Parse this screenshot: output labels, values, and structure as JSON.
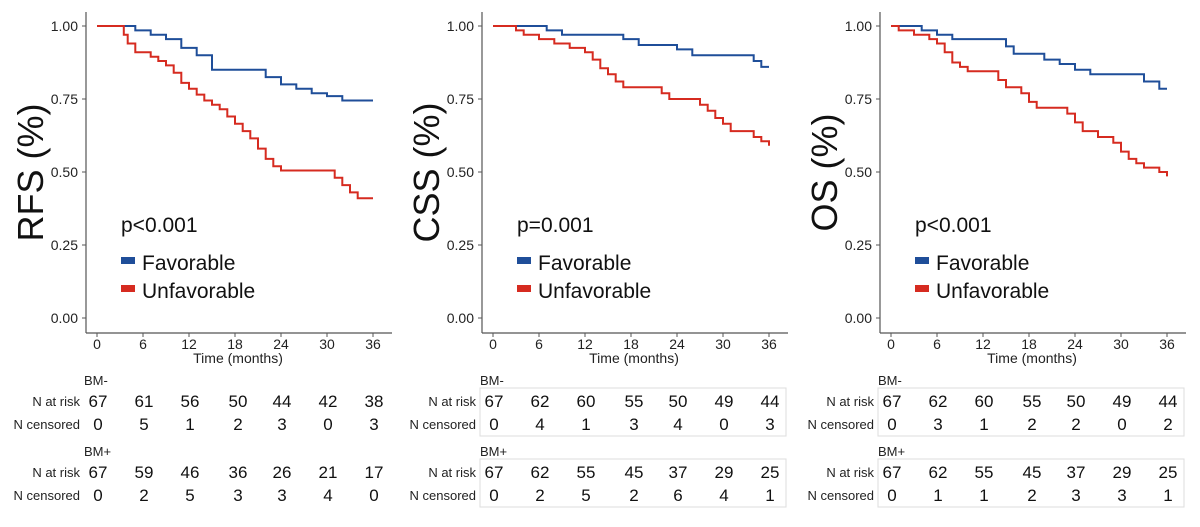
{
  "colors": {
    "favorable": "#1f4e99",
    "unfavorable": "#d62b20",
    "axis": "#555555",
    "table_border": "#dddddd"
  },
  "chart_data": [
    {
      "type": "line",
      "ylabel": "RFS (%)",
      "xlabel": "Time (months)",
      "pvalue": "p<0.001",
      "xlim": [
        0,
        36
      ],
      "ylim": [
        0,
        1
      ],
      "x_ticks": [
        "0",
        "6",
        "12",
        "18",
        "24",
        "30",
        "36"
      ],
      "y_ticks": [
        "0.00",
        "0.25",
        "0.50",
        "0.75",
        "1.00"
      ],
      "series": [
        {
          "name": "Favorable",
          "color_key": "favorable",
          "points": [
            [
              0,
              1
            ],
            [
              3,
              1
            ],
            [
              5,
              0.985
            ],
            [
              7,
              0.97
            ],
            [
              9,
              0.955
            ],
            [
              11,
              0.925
            ],
            [
              13,
              0.9
            ],
            [
              15,
              0.85
            ],
            [
              21,
              0.85
            ],
            [
              22,
              0.825
            ],
            [
              24,
              0.8
            ],
            [
              26,
              0.785
            ],
            [
              28,
              0.77
            ],
            [
              30,
              0.76
            ],
            [
              32,
              0.745
            ],
            [
              36,
              0.745
            ]
          ]
        },
        {
          "name": "Unfavorable",
          "color_key": "unfavorable",
          "points": [
            [
              0,
              1
            ],
            [
              3,
              1
            ],
            [
              3.5,
              0.97
            ],
            [
              4,
              0.94
            ],
            [
              5,
              0.91
            ],
            [
              7,
              0.895
            ],
            [
              8,
              0.88
            ],
            [
              9,
              0.865
            ],
            [
              10,
              0.84
            ],
            [
              11,
              0.805
            ],
            [
              12,
              0.785
            ],
            [
              13,
              0.765
            ],
            [
              14,
              0.745
            ],
            [
              15,
              0.73
            ],
            [
              16,
              0.715
            ],
            [
              17,
              0.69
            ],
            [
              18,
              0.665
            ],
            [
              19,
              0.64
            ],
            [
              20,
              0.615
            ],
            [
              21,
              0.58
            ],
            [
              22,
              0.545
            ],
            [
              23,
              0.52
            ],
            [
              24,
              0.505
            ],
            [
              30,
              0.505
            ],
            [
              31,
              0.48
            ],
            [
              32,
              0.455
            ],
            [
              33,
              0.43
            ],
            [
              34,
              0.41
            ],
            [
              36,
              0.41
            ]
          ]
        }
      ],
      "risk_table": {
        "times": [
          "0",
          "6",
          "12",
          "18",
          "24",
          "30",
          "36"
        ],
        "groups": [
          {
            "label": "BM-",
            "n_at_risk": [
              "67",
              "61",
              "56",
              "50",
              "44",
              "42",
              "38"
            ],
            "n_censored": [
              "0",
              "5",
              "1",
              "2",
              "3",
              "0",
              "3"
            ]
          },
          {
            "label": "BM+",
            "n_at_risk": [
              "67",
              "59",
              "46",
              "36",
              "26",
              "21",
              "17"
            ],
            "n_censored": [
              "0",
              "2",
              "5",
              "3",
              "3",
              "4",
              "0"
            ]
          }
        ]
      }
    },
    {
      "type": "line",
      "ylabel": "CSS (%)",
      "xlabel": "Time (months)",
      "pvalue": "p=0.001",
      "xlim": [
        0,
        36
      ],
      "ylim": [
        0,
        1
      ],
      "x_ticks": [
        "0",
        "6",
        "12",
        "18",
        "24",
        "30",
        "36"
      ],
      "y_ticks": [
        "0.00",
        "0.25",
        "0.50",
        "0.75",
        "1.00"
      ],
      "series": [
        {
          "name": "Favorable",
          "color_key": "favorable",
          "points": [
            [
              0,
              1
            ],
            [
              5,
              1
            ],
            [
              7,
              0.985
            ],
            [
              9,
              0.97
            ],
            [
              15,
              0.97
            ],
            [
              17,
              0.955
            ],
            [
              19,
              0.935
            ],
            [
              23,
              0.935
            ],
            [
              24,
              0.92
            ],
            [
              26,
              0.9
            ],
            [
              33,
              0.9
            ],
            [
              34,
              0.88
            ],
            [
              35,
              0.86
            ],
            [
              36,
              0.86
            ]
          ]
        },
        {
          "name": "Unfavorable",
          "color_key": "unfavorable",
          "points": [
            [
              0,
              1
            ],
            [
              2,
              1
            ],
            [
              3,
              0.985
            ],
            [
              4,
              0.97
            ],
            [
              6,
              0.955
            ],
            [
              8,
              0.94
            ],
            [
              10,
              0.925
            ],
            [
              12,
              0.91
            ],
            [
              13,
              0.885
            ],
            [
              14,
              0.855
            ],
            [
              15,
              0.835
            ],
            [
              16,
              0.81
            ],
            [
              17,
              0.79
            ],
            [
              21,
              0.79
            ],
            [
              22,
              0.77
            ],
            [
              23,
              0.75
            ],
            [
              26,
              0.75
            ],
            [
              27,
              0.73
            ],
            [
              28,
              0.71
            ],
            [
              29,
              0.685
            ],
            [
              30,
              0.665
            ],
            [
              31,
              0.64
            ],
            [
              33,
              0.64
            ],
            [
              34,
              0.62
            ],
            [
              35,
              0.605
            ],
            [
              36,
              0.59
            ]
          ]
        }
      ],
      "risk_table": {
        "times": [
          "0",
          "6",
          "12",
          "18",
          "24",
          "30",
          "36"
        ],
        "groups": [
          {
            "label": "BM-",
            "n_at_risk": [
              "67",
              "62",
              "60",
              "55",
              "50",
              "49",
              "44"
            ],
            "n_censored": [
              "0",
              "4",
              "1",
              "3",
              "4",
              "0",
              "3"
            ]
          },
          {
            "label": "BM+",
            "n_at_risk": [
              "67",
              "62",
              "55",
              "45",
              "37",
              "29",
              "25"
            ],
            "n_censored": [
              "0",
              "2",
              "5",
              "2",
              "6",
              "4",
              "1"
            ]
          }
        ]
      }
    },
    {
      "type": "line",
      "ylabel": "OS (%)",
      "xlabel": "Time (months)",
      "pvalue": "p<0.001",
      "xlim": [
        0,
        36
      ],
      "ylim": [
        0,
        1
      ],
      "x_ticks": [
        "0",
        "6",
        "12",
        "18",
        "24",
        "30",
        "36"
      ],
      "y_ticks": [
        "0.00",
        "0.25",
        "0.50",
        "0.75",
        "1.00"
      ],
      "series": [
        {
          "name": "Favorable",
          "color_key": "favorable",
          "points": [
            [
              0,
              1
            ],
            [
              2,
              1
            ],
            [
              4,
              0.985
            ],
            [
              6,
              0.97
            ],
            [
              8,
              0.955
            ],
            [
              14,
              0.955
            ],
            [
              15,
              0.93
            ],
            [
              16,
              0.905
            ],
            [
              19,
              0.905
            ],
            [
              20,
              0.885
            ],
            [
              22,
              0.87
            ],
            [
              24,
              0.85
            ],
            [
              26,
              0.835
            ],
            [
              32,
              0.835
            ],
            [
              33,
              0.81
            ],
            [
              35,
              0.785
            ],
            [
              36,
              0.785
            ]
          ]
        },
        {
          "name": "Unfavorable",
          "color_key": "unfavorable",
          "points": [
            [
              0,
              1
            ],
            [
              1,
              0.985
            ],
            [
              3,
              0.97
            ],
            [
              5,
              0.955
            ],
            [
              6,
              0.94
            ],
            [
              7,
              0.91
            ],
            [
              8,
              0.875
            ],
            [
              9,
              0.86
            ],
            [
              10,
              0.845
            ],
            [
              13,
              0.845
            ],
            [
              14,
              0.815
            ],
            [
              15,
              0.79
            ],
            [
              17,
              0.77
            ],
            [
              18,
              0.74
            ],
            [
              19,
              0.72
            ],
            [
              22,
              0.72
            ],
            [
              23,
              0.7
            ],
            [
              24,
              0.67
            ],
            [
              25,
              0.64
            ],
            [
              27,
              0.62
            ],
            [
              29,
              0.6
            ],
            [
              30,
              0.57
            ],
            [
              31,
              0.545
            ],
            [
              32,
              0.53
            ],
            [
              33,
              0.515
            ],
            [
              35,
              0.5
            ],
            [
              36,
              0.485
            ]
          ]
        }
      ],
      "risk_table": {
        "times": [
          "0",
          "6",
          "12",
          "18",
          "24",
          "30",
          "36"
        ],
        "groups": [
          {
            "label": "BM-",
            "n_at_risk": [
              "67",
              "62",
              "60",
              "55",
              "50",
              "49",
              "44"
            ],
            "n_censored": [
              "0",
              "3",
              "1",
              "2",
              "2",
              "0",
              "2"
            ]
          },
          {
            "label": "BM+",
            "n_at_risk": [
              "67",
              "62",
              "55",
              "45",
              "37",
              "29",
              "25"
            ],
            "n_censored": [
              "0",
              "1",
              "1",
              "2",
              "3",
              "3",
              "1"
            ]
          }
        ]
      }
    }
  ],
  "table_labels": {
    "at_risk": "N at risk",
    "censored": "N censored"
  }
}
